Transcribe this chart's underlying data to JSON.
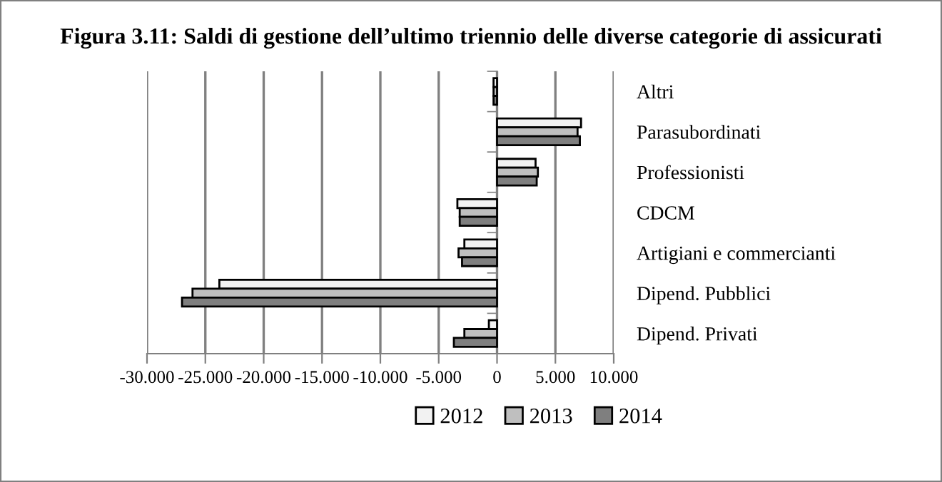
{
  "chart_data": {
    "type": "bar",
    "orientation": "horizontal",
    "title": "Figura 3.11: Saldi di gestione dell’ultimo triennio delle diverse categorie di assicurati",
    "categories": [
      "Altri",
      "Parasubordinati",
      "Professionisti",
      "CDCM",
      "Artigiani e commercianti",
      "Dipend. Pubblici",
      "Dipend. Privati"
    ],
    "series": [
      {
        "name": "2012",
        "color": "#f2f2f2",
        "values": [
          -0.3,
          7.2,
          3.3,
          -3.4,
          -2.8,
          -23.8,
          -0.7
        ]
      },
      {
        "name": "2013",
        "color": "#bfbfbf",
        "values": [
          -0.3,
          6.9,
          3.5,
          -3.2,
          -3.3,
          -26.1,
          -2.8
        ]
      },
      {
        "name": "2014",
        "color": "#7f7f7f",
        "values": [
          -0.3,
          7.1,
          3.4,
          -3.2,
          -3.0,
          -27.0,
          -3.7
        ]
      }
    ],
    "xlim": [
      -30,
      10
    ],
    "xticks": [
      {
        "value": -30,
        "label": "-30.000"
      },
      {
        "value": -25,
        "label": "-25.000"
      },
      {
        "value": -20,
        "label": "-20.000"
      },
      {
        "value": -15,
        "label": "-15.000"
      },
      {
        "value": -10,
        "label": "-10.000"
      },
      {
        "value": -5,
        "label": "-5.000"
      },
      0,
      {
        "value": 5,
        "label": "5.000"
      },
      {
        "value": 10,
        "label": "10.000"
      }
    ],
    "grid": "x",
    "legend": "bottom"
  }
}
